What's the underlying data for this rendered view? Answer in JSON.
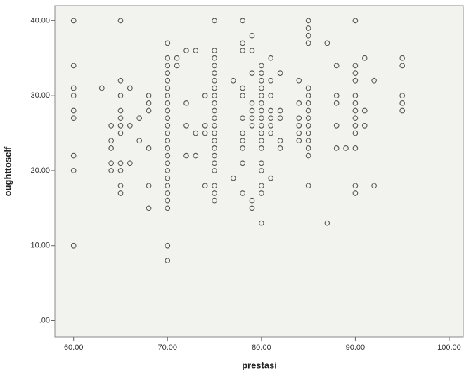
{
  "chart_data": {
    "type": "scatter",
    "x_label": "prestasi",
    "y_label": "oughttoself",
    "xlim": [
      58,
      101.5
    ],
    "ylim": [
      -2.2,
      42
    ],
    "xticks": [
      {
        "value": 60,
        "label": "60.00"
      },
      {
        "value": 70,
        "label": "70.00"
      },
      {
        "value": 80,
        "label": "80.00"
      },
      {
        "value": 90,
        "label": "90.00"
      },
      {
        "value": 100,
        "label": "100.00"
      }
    ],
    "yticks": [
      {
        "value": 0,
        "label": ".00"
      },
      {
        "value": 10,
        "label": "10.00"
      },
      {
        "value": 20,
        "label": "20.00"
      },
      {
        "value": 30,
        "label": "30.00"
      },
      {
        "value": 40,
        "label": "40.00"
      }
    ],
    "grid": false,
    "color": "#555555",
    "x": [
      60,
      60,
      60,
      60,
      60,
      60,
      60,
      60,
      60,
      63,
      64,
      64,
      64,
      64,
      64,
      65,
      65,
      65,
      65,
      65,
      65,
      65,
      65,
      65,
      65,
      65,
      66,
      66,
      66,
      67,
      67,
      68,
      68,
      68,
      68,
      68,
      68,
      70,
      70,
      70,
      70,
      70,
      70,
      70,
      70,
      70,
      70,
      70,
      70,
      70,
      70,
      70,
      70,
      70,
      70,
      70,
      70,
      70,
      70,
      70,
      70,
      71,
      71,
      72,
      72,
      72,
      72,
      73,
      73,
      73,
      74,
      74,
      74,
      74,
      75,
      75,
      75,
      75,
      75,
      75,
      75,
      75,
      75,
      75,
      75,
      75,
      75,
      75,
      75,
      75,
      75,
      75,
      75,
      75,
      75,
      77,
      77,
      78,
      78,
      78,
      78,
      78,
      78,
      78,
      78,
      78,
      78,
      78,
      79,
      79,
      79,
      79,
      79,
      79,
      79,
      79,
      79,
      80,
      80,
      80,
      80,
      80,
      80,
      80,
      80,
      80,
      80,
      80,
      80,
      80,
      80,
      80,
      80,
      80,
      81,
      81,
      81,
      81,
      81,
      81,
      81,
      81,
      82,
      82,
      82,
      82,
      82,
      84,
      84,
      84,
      84,
      84,
      84,
      85,
      85,
      85,
      85,
      85,
      85,
      85,
      85,
      85,
      85,
      85,
      85,
      85,
      85,
      85,
      87,
      87,
      88,
      88,
      88,
      88,
      88,
      89,
      90,
      90,
      90,
      90,
      90,
      90,
      90,
      90,
      90,
      90,
      90,
      90,
      90,
      91,
      91,
      91,
      92,
      92,
      95,
      95,
      95,
      95,
      95
    ],
    "y": [
      40,
      34,
      31,
      30,
      28,
      27,
      22,
      20,
      10,
      31,
      26,
      24,
      23,
      21,
      20,
      40,
      32,
      30,
      28,
      27,
      26,
      25,
      21,
      20,
      18,
      17,
      31,
      26,
      21,
      27,
      24,
      30,
      29,
      28,
      23,
      18,
      15,
      37,
      35,
      34,
      33,
      32,
      31,
      30,
      29,
      28,
      27,
      26,
      25,
      24,
      23,
      22,
      21,
      20,
      19,
      18,
      17,
      16,
      15,
      10,
      8,
      35,
      34,
      36,
      29,
      26,
      22,
      36,
      25,
      22,
      30,
      26,
      25,
      18,
      40,
      36,
      35,
      34,
      33,
      32,
      31,
      30,
      29,
      28,
      27,
      26,
      25,
      24,
      23,
      22,
      21,
      20,
      18,
      17,
      16,
      32,
      19,
      40,
      37,
      36,
      31,
      30,
      27,
      25,
      24,
      23,
      21,
      17,
      38,
      36,
      33,
      29,
      28,
      27,
      26,
      16,
      15,
      34,
      33,
      32,
      31,
      30,
      29,
      28,
      27,
      26,
      25,
      24,
      23,
      21,
      20,
      18,
      17,
      13,
      35,
      32,
      30,
      28,
      27,
      26,
      25,
      19,
      33,
      28,
      27,
      24,
      23,
      32,
      29,
      27,
      26,
      25,
      24,
      40,
      39,
      38,
      37,
      31,
      30,
      29,
      28,
      27,
      26,
      25,
      24,
      23,
      22,
      18,
      37,
      13,
      34,
      30,
      29,
      26,
      23,
      23,
      40,
      34,
      33,
      32,
      30,
      29,
      28,
      27,
      26,
      25,
      23,
      18,
      17,
      35,
      28,
      26,
      32,
      18,
      35,
      34,
      30,
      29,
      28
    ]
  }
}
